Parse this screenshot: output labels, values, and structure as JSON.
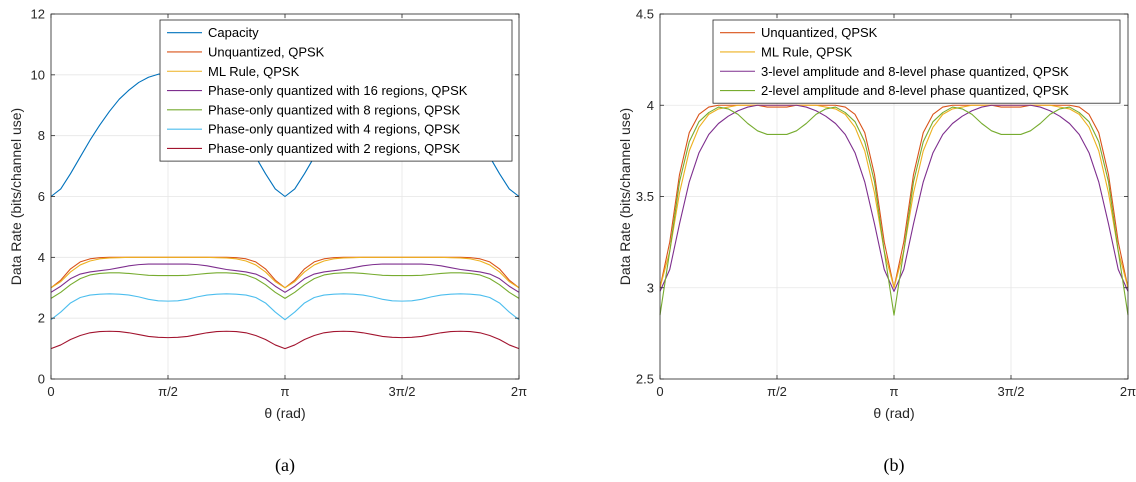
{
  "chart_data": [
    {
      "type": "line",
      "caption": "(a)",
      "xlabel": "θ (rad)",
      "ylabel": "Data Rate (bits/channel use)",
      "xlim": [
        0,
        6.2832
      ],
      "ylim": [
        0,
        12
      ],
      "xticks": [
        0,
        1.5708,
        3.1416,
        4.7124,
        6.2832
      ],
      "xtick_labels": [
        "0",
        "π/2",
        "π",
        "3π/2",
        "2π"
      ],
      "yticks": [
        0,
        2,
        4,
        6,
        8,
        10,
        12
      ],
      "ytick_labels": [
        "0",
        "2",
        "4",
        "6",
        "8",
        "10",
        "12"
      ],
      "grid": true,
      "legend_position": "top-right",
      "x": [
        0,
        0.1309,
        0.2618,
        0.3927,
        0.5236,
        0.6545,
        0.7854,
        0.9163,
        1.0472,
        1.1781,
        1.309,
        1.4399,
        1.5708,
        1.7017,
        1.8326,
        1.9635,
        2.0944,
        2.2253,
        2.3562,
        2.4871,
        2.618,
        2.7489,
        2.8798,
        3.0107,
        3.1416,
        3.2725,
        3.4034,
        3.5343,
        3.6652,
        3.7961,
        3.927,
        4.0579,
        4.1888,
        4.3197,
        4.4506,
        4.5815,
        4.7124,
        4.8433,
        4.9742,
        5.1051,
        5.236,
        5.3669,
        5.4978,
        5.6287,
        5.7596,
        5.8905,
        6.0214,
        6.1523,
        6.2832
      ],
      "series": [
        {
          "name": "Capacity",
          "color": "#0072BD",
          "values": [
            6.0,
            6.25,
            6.75,
            7.3,
            7.85,
            8.35,
            8.8,
            9.2,
            9.5,
            9.75,
            9.92,
            10.02,
            10.05,
            10.02,
            9.92,
            9.75,
            9.5,
            9.2,
            8.8,
            8.35,
            7.85,
            7.3,
            6.75,
            6.25,
            6.0,
            6.25,
            6.75,
            7.3,
            7.85,
            8.35,
            8.8,
            9.2,
            9.5,
            9.75,
            9.92,
            10.02,
            10.05,
            10.02,
            9.92,
            9.75,
            9.5,
            9.2,
            8.8,
            8.35,
            7.85,
            7.3,
            6.75,
            6.25,
            6.0
          ]
        },
        {
          "name": "Unquantized, QPSK",
          "color": "#D95319",
          "values": [
            3.0,
            3.25,
            3.62,
            3.85,
            3.95,
            3.99,
            4.0,
            4.0,
            4.0,
            4.0,
            4.0,
            4.0,
            4.0,
            4.0,
            4.0,
            4.0,
            4.0,
            4.0,
            4.0,
            3.99,
            3.95,
            3.85,
            3.62,
            3.25,
            3.0,
            3.25,
            3.62,
            3.85,
            3.95,
            3.99,
            4.0,
            4.0,
            4.0,
            4.0,
            4.0,
            4.0,
            4.0,
            4.0,
            4.0,
            4.0,
            4.0,
            4.0,
            4.0,
            3.99,
            3.95,
            3.85,
            3.62,
            3.25,
            3.0
          ]
        },
        {
          "name": "ML Rule, QPSK",
          "color": "#EDB120",
          "values": [
            3.0,
            3.2,
            3.52,
            3.75,
            3.88,
            3.95,
            3.98,
            3.99,
            4.0,
            4.0,
            4.0,
            4.0,
            4.0,
            4.0,
            4.0,
            4.0,
            4.0,
            3.99,
            3.98,
            3.95,
            3.88,
            3.75,
            3.52,
            3.2,
            3.0,
            3.2,
            3.52,
            3.75,
            3.88,
            3.95,
            3.98,
            3.99,
            4.0,
            4.0,
            4.0,
            4.0,
            4.0,
            4.0,
            4.0,
            4.0,
            4.0,
            3.99,
            3.98,
            3.95,
            3.88,
            3.75,
            3.52,
            3.2,
            3.0
          ]
        },
        {
          "name": "Phase-only quantized with 16 regions, QPSK",
          "color": "#7E2F8E",
          "values": [
            2.85,
            3.05,
            3.3,
            3.45,
            3.52,
            3.56,
            3.6,
            3.66,
            3.72,
            3.76,
            3.78,
            3.78,
            3.78,
            3.78,
            3.78,
            3.76,
            3.72,
            3.66,
            3.6,
            3.56,
            3.52,
            3.45,
            3.3,
            3.05,
            2.85,
            3.05,
            3.3,
            3.45,
            3.52,
            3.56,
            3.6,
            3.66,
            3.72,
            3.76,
            3.78,
            3.78,
            3.78,
            3.78,
            3.78,
            3.76,
            3.72,
            3.66,
            3.6,
            3.56,
            3.52,
            3.45,
            3.3,
            3.05,
            2.85
          ]
        },
        {
          "name": "Phase-only quantized with 8 regions, QPSK",
          "color": "#77AC30",
          "values": [
            2.65,
            2.85,
            3.1,
            3.3,
            3.42,
            3.47,
            3.49,
            3.49,
            3.47,
            3.44,
            3.41,
            3.4,
            3.4,
            3.4,
            3.41,
            3.44,
            3.47,
            3.49,
            3.49,
            3.47,
            3.42,
            3.3,
            3.1,
            2.85,
            2.65,
            2.85,
            3.1,
            3.3,
            3.42,
            3.47,
            3.49,
            3.49,
            3.47,
            3.44,
            3.41,
            3.4,
            3.4,
            3.4,
            3.41,
            3.44,
            3.47,
            3.49,
            3.49,
            3.47,
            3.42,
            3.3,
            3.1,
            2.85,
            2.65
          ]
        },
        {
          "name": "Phase-only quantized with 4 regions, QPSK",
          "color": "#4DBEEE",
          "values": [
            1.95,
            2.2,
            2.5,
            2.68,
            2.76,
            2.79,
            2.8,
            2.79,
            2.76,
            2.7,
            2.62,
            2.57,
            2.56,
            2.57,
            2.62,
            2.7,
            2.76,
            2.79,
            2.8,
            2.79,
            2.76,
            2.68,
            2.5,
            2.2,
            1.95,
            2.2,
            2.5,
            2.68,
            2.76,
            2.79,
            2.8,
            2.79,
            2.76,
            2.7,
            2.62,
            2.57,
            2.56,
            2.57,
            2.62,
            2.7,
            2.76,
            2.79,
            2.8,
            2.79,
            2.76,
            2.68,
            2.5,
            2.2,
            1.95
          ]
        },
        {
          "name": "Phase-only quantized with 2 regions, QPSK",
          "color": "#A2142F",
          "values": [
            1.0,
            1.12,
            1.3,
            1.43,
            1.52,
            1.56,
            1.57,
            1.56,
            1.52,
            1.46,
            1.4,
            1.37,
            1.36,
            1.37,
            1.4,
            1.46,
            1.52,
            1.56,
            1.57,
            1.56,
            1.52,
            1.43,
            1.3,
            1.12,
            1.0,
            1.12,
            1.3,
            1.43,
            1.52,
            1.56,
            1.57,
            1.56,
            1.52,
            1.46,
            1.4,
            1.37,
            1.36,
            1.37,
            1.4,
            1.46,
            1.52,
            1.56,
            1.57,
            1.56,
            1.52,
            1.43,
            1.3,
            1.12,
            1.0
          ]
        }
      ]
    },
    {
      "type": "line",
      "caption": "(b)",
      "xlabel": "θ (rad)",
      "ylabel": "Data Rate (bits/channel use)",
      "xlim": [
        0,
        6.2832
      ],
      "ylim": [
        2.5,
        4.5
      ],
      "xticks": [
        0,
        1.5708,
        3.1416,
        4.7124,
        6.2832
      ],
      "xtick_labels": [
        "0",
        "π/2",
        "π",
        "3π/2",
        "2π"
      ],
      "yticks": [
        2.5,
        3,
        3.5,
        4,
        4.5
      ],
      "ytick_labels": [
        "2.5",
        "3",
        "3.5",
        "4",
        "4.5"
      ],
      "grid": true,
      "legend_position": "top-right",
      "x": [
        0,
        0.1309,
        0.2618,
        0.3927,
        0.5236,
        0.6545,
        0.7854,
        0.9163,
        1.0472,
        1.1781,
        1.309,
        1.4399,
        1.5708,
        1.7017,
        1.8326,
        1.9635,
        2.0944,
        2.2253,
        2.3562,
        2.4871,
        2.618,
        2.7489,
        2.8798,
        3.0107,
        3.1416,
        3.2725,
        3.4034,
        3.5343,
        3.6652,
        3.7961,
        3.927,
        4.0579,
        4.1888,
        4.3197,
        4.4506,
        4.5815,
        4.7124,
        4.8433,
        4.9742,
        5.1051,
        5.236,
        5.3669,
        5.4978,
        5.6287,
        5.7596,
        5.8905,
        6.0214,
        6.1523,
        6.2832
      ],
      "series": [
        {
          "name": "Unquantized, QPSK",
          "color": "#D95319",
          "values": [
            3.0,
            3.25,
            3.62,
            3.85,
            3.95,
            3.99,
            4.0,
            4.0,
            4.0,
            4.0,
            4.0,
            3.99,
            3.99,
            3.99,
            4.0,
            4.0,
            4.0,
            4.0,
            4.0,
            3.99,
            3.95,
            3.85,
            3.62,
            3.25,
            3.0,
            3.25,
            3.62,
            3.85,
            3.95,
            3.99,
            4.0,
            4.0,
            4.0,
            4.0,
            4.0,
            3.99,
            3.99,
            3.99,
            4.0,
            4.0,
            4.0,
            4.0,
            4.0,
            3.99,
            3.95,
            3.85,
            3.62,
            3.25,
            3.0
          ]
        },
        {
          "name": "ML Rule, QPSK",
          "color": "#EDB120",
          "values": [
            3.0,
            3.2,
            3.52,
            3.75,
            3.88,
            3.95,
            3.98,
            3.99,
            4.0,
            4.0,
            4.0,
            4.0,
            4.0,
            4.0,
            4.0,
            4.0,
            4.0,
            3.99,
            3.98,
            3.95,
            3.88,
            3.75,
            3.52,
            3.2,
            3.0,
            3.2,
            3.52,
            3.75,
            3.88,
            3.95,
            3.98,
            3.99,
            4.0,
            4.0,
            4.0,
            4.0,
            4.0,
            4.0,
            4.0,
            4.0,
            4.0,
            3.99,
            3.98,
            3.95,
            3.88,
            3.75,
            3.52,
            3.2,
            3.0
          ]
        },
        {
          "name": "3-level amplitude and 8-level phase quantized, QPSK",
          "color": "#7E2F8E",
          "values": [
            2.98,
            3.1,
            3.35,
            3.58,
            3.74,
            3.84,
            3.9,
            3.94,
            3.97,
            3.99,
            4.0,
            4.0,
            4.0,
            4.0,
            4.0,
            3.99,
            3.97,
            3.94,
            3.9,
            3.84,
            3.74,
            3.58,
            3.35,
            3.1,
            2.98,
            3.1,
            3.35,
            3.58,
            3.74,
            3.84,
            3.9,
            3.94,
            3.97,
            3.99,
            4.0,
            4.0,
            4.0,
            4.0,
            4.0,
            3.99,
            3.97,
            3.94,
            3.9,
            3.84,
            3.74,
            3.58,
            3.35,
            3.1,
            2.98
          ]
        },
        {
          "name": "2-level amplitude and 8-level phase quantized, QPSK",
          "color": "#77AC30",
          "values": [
            2.85,
            3.2,
            3.58,
            3.8,
            3.91,
            3.96,
            3.99,
            3.98,
            3.95,
            3.9,
            3.86,
            3.84,
            3.84,
            3.84,
            3.86,
            3.9,
            3.95,
            3.98,
            3.99,
            3.96,
            3.91,
            3.8,
            3.58,
            3.2,
            2.85,
            3.2,
            3.58,
            3.8,
            3.91,
            3.96,
            3.99,
            3.98,
            3.95,
            3.9,
            3.86,
            3.84,
            3.84,
            3.84,
            3.86,
            3.9,
            3.95,
            3.98,
            3.99,
            3.96,
            3.91,
            3.8,
            3.58,
            3.2,
            2.85
          ]
        }
      ]
    }
  ]
}
